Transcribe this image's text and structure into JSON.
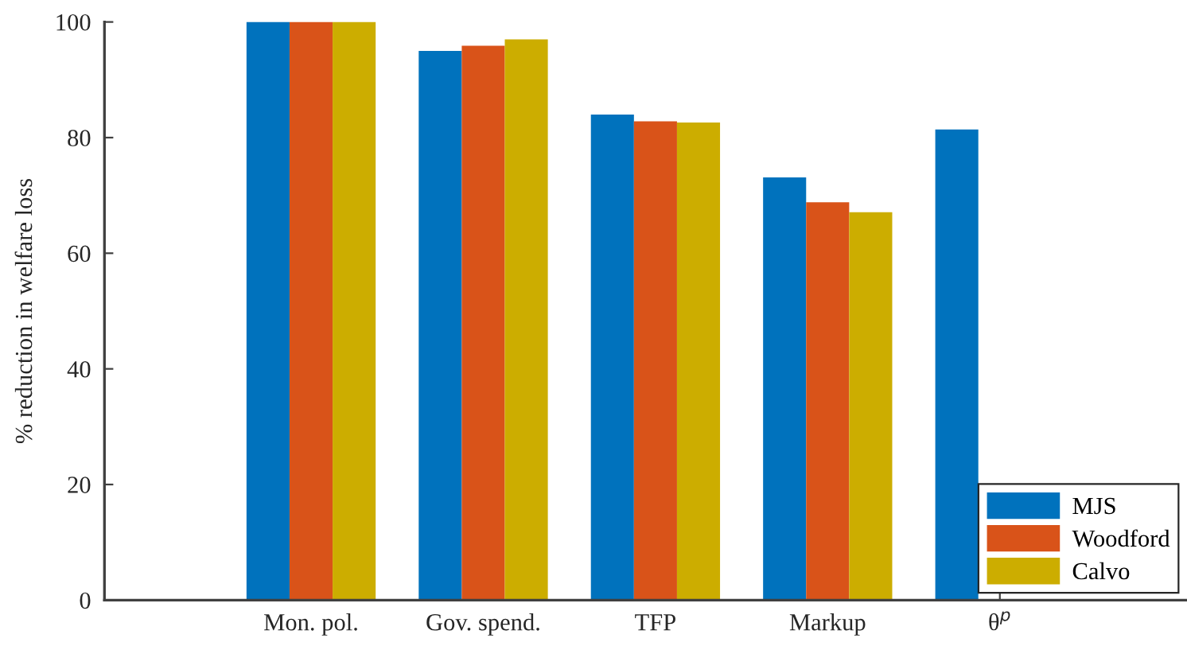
{
  "chart_data": {
    "type": "bar",
    "categories": [
      "Mon. pol.",
      "Gov. spend.",
      "TFP",
      "Markup",
      "θ$^{p}$"
    ],
    "ylabel": "% reduction in welfare loss",
    "ylim": [
      0,
      100
    ],
    "yticks": [
      0,
      20,
      40,
      60,
      80,
      100
    ],
    "legend": "bottom right",
    "grid": false,
    "series": [
      {
        "name": "MJS",
        "color": "#0072bd",
        "values": [
          100,
          95,
          84,
          73.1,
          81.4
        ]
      },
      {
        "name": "Woodford",
        "color": "#d95319",
        "values": [
          100,
          95.9,
          82.8,
          68.8,
          null
        ]
      },
      {
        "name": "Calvo",
        "color": "#ccad00",
        "values": [
          100,
          97,
          82.6,
          67.1,
          null
        ]
      }
    ]
  }
}
